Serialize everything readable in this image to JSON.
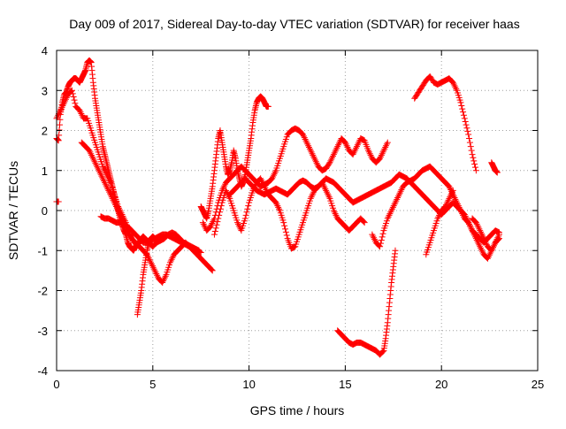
{
  "chart_data": {
    "type": "scatter",
    "title": "Day 009 of 2017, Sidereal Day-to-day VTEC variation (SDTVAR) for receiver haas",
    "xlabel": "GPS time / hours",
    "ylabel": "SDTVAR / TECUs",
    "xlim": [
      0,
      25
    ],
    "ylim": [
      -4,
      4
    ],
    "xticks": [
      "0",
      "5",
      "10",
      "15",
      "20",
      "25"
    ],
    "yticks": [
      "-4",
      "-3",
      "-2",
      "-1",
      "0",
      "1",
      "2",
      "3",
      "4"
    ],
    "grid": true,
    "legend": "none",
    "marker": "+",
    "colors": {
      "series": "#ff0000",
      "grid": "#a0a0a0",
      "axis": "#000000"
    },
    "series": [
      {
        "x": [
          0.0,
          0.1
        ],
        "y": [
          0.22,
          0.22
        ]
      },
      {
        "x": [
          0.0,
          0.1,
          0.2,
          0.3,
          0.4,
          0.5,
          0.6,
          0.7,
          0.8,
          0.9,
          1.0,
          1.1,
          1.2,
          1.3,
          1.4,
          1.5,
          1.6,
          1.7,
          1.8,
          1.9,
          2.0,
          2.1,
          2.2,
          2.3,
          2.4,
          2.5,
          2.6,
          2.7,
          2.8,
          2.9,
          3.0,
          3.1,
          3.2,
          3.3,
          3.4,
          3.5,
          3.6,
          3.7,
          3.8,
          3.9,
          4.0,
          4.1,
          4.2,
          4.3,
          4.4,
          4.5,
          4.6,
          4.7,
          4.8,
          4.9,
          5.0,
          5.2,
          5.4,
          5.6,
          5.8,
          6.0,
          6.2,
          6.4,
          6.6,
          6.8,
          7.0,
          7.2,
          7.4
        ],
        "y": [
          1.8,
          1.75,
          2.4,
          2.7,
          2.9,
          2.95,
          3.1,
          3.2,
          3.25,
          3.3,
          3.3,
          3.25,
          3.2,
          3.3,
          3.4,
          3.5,
          3.7,
          3.75,
          3.7,
          3.2,
          2.8,
          2.5,
          2.2,
          1.9,
          1.6,
          1.4,
          1.2,
          1.0,
          0.8,
          0.6,
          0.4,
          0.2,
          0.0,
          -0.2,
          -0.35,
          -0.5,
          -0.6,
          -0.8,
          -0.9,
          -0.95,
          -1.0,
          -0.9,
          -0.85,
          -0.8,
          -0.7,
          -0.65,
          -0.7,
          -0.75,
          -0.8,
          -0.85,
          -0.9,
          -0.8,
          -0.75,
          -0.7,
          -0.6,
          -0.55,
          -0.6,
          -0.7,
          -0.8,
          -0.85,
          -0.9,
          -0.95,
          -1.0
        ]
      },
      {
        "x": [
          0.0,
          0.2,
          0.4,
          0.6,
          0.8,
          1.0,
          1.2,
          1.4,
          1.6,
          1.8,
          2.0,
          2.2,
          2.4,
          2.6,
          2.8,
          3.0,
          3.2,
          3.4,
          3.6,
          3.8,
          4.0
        ],
        "y": [
          2.3,
          2.5,
          2.7,
          2.9,
          3.0,
          2.6,
          2.5,
          2.3,
          2.3,
          2.0,
          1.7,
          1.4,
          1.1,
          0.9,
          0.7,
          0.4,
          0.1,
          -0.1,
          -0.3,
          -0.6,
          -0.8
        ]
      },
      {
        "x": [
          1.3,
          1.5,
          1.7,
          1.9,
          2.1,
          2.3,
          2.5,
          2.7,
          2.9,
          3.1,
          3.3,
          3.5,
          3.7,
          3.9,
          4.1,
          4.3,
          4.5,
          4.7,
          4.9,
          5.1,
          5.3,
          5.5,
          5.7,
          5.9,
          6.1,
          6.3,
          6.5,
          6.7,
          6.9,
          7.1,
          7.3,
          7.5,
          7.7,
          7.9,
          8.1
        ],
        "y": [
          1.7,
          1.6,
          1.5,
          1.3,
          1.1,
          0.9,
          0.7,
          0.5,
          0.3,
          0.1,
          -0.1,
          -0.3,
          -0.5,
          -0.7,
          -0.8,
          -0.9,
          -1.0,
          -1.1,
          -1.3,
          -1.5,
          -1.7,
          -1.8,
          -1.6,
          -1.3,
          -1.1,
          -1.0,
          -0.9,
          -0.8,
          -0.9,
          -1.0,
          -1.1,
          -1.2,
          -1.3,
          -1.4,
          -1.5
        ]
      },
      {
        "x": [
          2.3,
          2.5,
          2.7,
          2.9,
          3.1,
          3.3,
          3.5,
          3.7,
          3.9,
          4.1,
          4.3,
          4.5,
          4.7,
          4.9,
          5.1,
          5.3,
          5.5,
          5.7,
          5.9,
          6.1,
          6.3,
          6.5,
          6.7,
          6.9,
          7.1,
          7.3,
          7.5
        ],
        "y": [
          -0.15,
          -0.2,
          -0.2,
          -0.25,
          -0.3,
          -0.3,
          -0.35,
          -0.4,
          -0.5,
          -0.6,
          -0.7,
          -0.8,
          -0.8,
          -0.75,
          -0.7,
          -0.65,
          -0.6,
          -0.6,
          -0.65,
          -0.7,
          -0.75,
          -0.8,
          -0.85,
          -0.9,
          -0.95,
          -1.0,
          -1.05
        ]
      },
      {
        "x": [
          4.2,
          4.3,
          4.4,
          4.5,
          4.6,
          4.7,
          4.8,
          4.9,
          5.0,
          5.1,
          5.2
        ],
        "y": [
          -2.6,
          -2.3,
          -2.0,
          -1.6,
          -1.3,
          -1.0,
          -0.8,
          -0.7,
          -0.65,
          -0.7,
          -0.75
        ]
      },
      {
        "x": [
          7.5,
          7.6,
          7.7,
          7.8,
          7.9,
          8.0,
          8.1,
          8.2,
          8.3,
          8.4,
          8.5,
          8.6,
          8.7,
          8.8,
          8.9,
          9.0,
          9.1,
          9.2,
          9.3,
          9.4,
          9.5,
          9.6,
          9.7,
          9.8,
          9.9,
          10.0,
          10.1,
          10.2,
          10.3,
          10.4,
          10.5,
          10.6,
          10.7,
          10.8,
          10.9,
          11.0
        ],
        "y": [
          0.1,
          0.0,
          -0.1,
          -0.2,
          0.0,
          0.3,
          0.6,
          1.0,
          1.4,
          1.8,
          2.0,
          1.7,
          1.4,
          1.1,
          0.9,
          1.0,
          1.2,
          1.5,
          1.3,
          1.0,
          0.8,
          0.6,
          0.7,
          0.9,
          1.2,
          1.5,
          1.8,
          2.2,
          2.5,
          2.7,
          2.8,
          2.85,
          2.8,
          2.7,
          2.6,
          2.6
        ]
      },
      {
        "x": [
          7.6,
          7.8,
          8.0,
          8.2,
          8.4,
          8.6,
          8.8,
          9.0,
          9.2,
          9.4,
          9.6,
          9.8,
          10.0,
          10.2,
          10.4,
          10.6,
          10.8,
          11.0,
          11.2,
          11.4,
          11.6,
          11.8,
          12.0,
          12.2,
          12.4,
          12.6,
          12.8,
          13.0,
          13.2,
          13.4,
          13.6,
          13.8,
          14.0,
          14.2,
          14.4,
          14.6,
          14.8,
          15.0,
          15.2,
          15.4,
          15.6,
          15.8,
          16.0,
          16.2,
          16.4,
          16.6,
          16.8,
          17.0,
          17.2
        ],
        "y": [
          -0.3,
          -0.5,
          -0.4,
          -0.2,
          0.2,
          0.5,
          0.7,
          0.8,
          0.9,
          1.0,
          1.1,
          1.0,
          0.9,
          0.8,
          0.7,
          0.6,
          0.65,
          0.7,
          0.8,
          1.0,
          1.3,
          1.6,
          1.9,
          2.0,
          2.05,
          2.0,
          1.9,
          1.7,
          1.5,
          1.3,
          1.1,
          1.0,
          1.05,
          1.2,
          1.4,
          1.6,
          1.8,
          1.7,
          1.5,
          1.4,
          1.6,
          1.8,
          1.75,
          1.5,
          1.3,
          1.2,
          1.3,
          1.5,
          1.7
        ]
      },
      {
        "x": [
          8.2,
          8.4,
          8.6,
          8.8,
          9.0,
          9.2,
          9.4,
          9.6,
          9.8,
          10.0,
          10.2,
          10.4,
          10.6,
          10.8,
          11.0,
          11.2,
          11.4,
          11.6,
          11.8,
          12.0,
          12.2,
          12.4,
          12.6,
          12.8,
          13.0,
          13.2,
          13.4,
          13.6,
          13.8,
          14.0,
          14.2,
          14.4,
          14.6,
          14.8,
          15.0,
          15.2,
          15.4,
          15.6,
          15.8,
          16.0
        ],
        "y": [
          -0.6,
          -0.2,
          0.2,
          0.5,
          0.3,
          0.0,
          -0.3,
          -0.5,
          -0.2,
          0.2,
          0.5,
          0.7,
          0.8,
          0.6,
          0.4,
          0.3,
          0.2,
          0.0,
          -0.3,
          -0.7,
          -0.95,
          -0.9,
          -0.6,
          -0.3,
          0.0,
          0.3,
          0.5,
          0.6,
          0.7,
          0.5,
          0.3,
          0.0,
          -0.2,
          -0.3,
          -0.4,
          -0.5,
          -0.4,
          -0.3,
          -0.2,
          -0.3
        ]
      },
      {
        "x": [
          9.0,
          9.2,
          9.4,
          9.6,
          9.8,
          10.0,
          10.2,
          10.4,
          10.6,
          10.8,
          11.0,
          11.2,
          11.4,
          11.6,
          11.8,
          12.0,
          12.2,
          12.4,
          12.6,
          12.8,
          13.0,
          13.2,
          13.4,
          13.6,
          13.8,
          14.0,
          14.2,
          14.4,
          14.6,
          14.8,
          15.0,
          15.2,
          15.4,
          15.6,
          15.8,
          16.0,
          16.2,
          16.4,
          16.6,
          16.8,
          17.0,
          17.2,
          17.4,
          17.6,
          17.8,
          18.0,
          18.2,
          18.4,
          18.6,
          18.8,
          19.0,
          19.2,
          19.4,
          19.6,
          19.8,
          20.0,
          20.2,
          20.4,
          20.6,
          20.8,
          21.0,
          21.2,
          21.4,
          21.6,
          21.8,
          22.0,
          22.2,
          22.4,
          22.6,
          22.8,
          23.0
        ],
        "y": [
          0.4,
          0.5,
          0.6,
          0.7,
          0.8,
          0.7,
          0.6,
          0.5,
          0.45,
          0.4,
          0.45,
          0.5,
          0.55,
          0.5,
          0.45,
          0.4,
          0.5,
          0.6,
          0.7,
          0.75,
          0.7,
          0.6,
          0.55,
          0.6,
          0.7,
          0.8,
          0.75,
          0.7,
          0.6,
          0.5,
          0.4,
          0.3,
          0.2,
          0.25,
          0.3,
          0.35,
          0.4,
          0.45,
          0.5,
          0.55,
          0.6,
          0.65,
          0.7,
          0.8,
          0.9,
          0.85,
          0.8,
          0.7,
          0.6,
          0.5,
          0.4,
          0.3,
          0.2,
          0.1,
          0.0,
          -0.1,
          0.0,
          0.1,
          0.2,
          0.1,
          0.0,
          -0.1,
          -0.3,
          -0.5,
          -0.7,
          -0.9,
          -1.1,
          -1.2,
          -1.0,
          -0.8,
          -0.6
        ]
      },
      {
        "x": [
          14.6,
          14.8,
          15.0,
          15.2,
          15.4,
          15.6,
          15.8,
          16.0,
          16.2,
          16.4,
          16.6,
          16.8,
          17.0,
          17.1,
          17.2,
          17.3,
          17.4,
          17.5,
          17.6
        ],
        "y": [
          -3.0,
          -3.1,
          -3.2,
          -3.3,
          -3.35,
          -3.3,
          -3.3,
          -3.35,
          -3.4,
          -3.45,
          -3.5,
          -3.6,
          -3.5,
          -3.2,
          -2.8,
          -2.3,
          -1.8,
          -1.4,
          -1.0
        ]
      },
      {
        "x": [
          16.4,
          16.6,
          16.8,
          17.0,
          17.2,
          17.4,
          17.6,
          17.8,
          18.0,
          18.2,
          18.4,
          18.6,
          18.8,
          19.0,
          19.2,
          19.4,
          19.6,
          19.8,
          20.0,
          20.2,
          20.4,
          20.6,
          20.8,
          21.0,
          21.2,
          21.4,
          21.6,
          21.8,
          22.0,
          22.2,
          22.4,
          22.6,
          22.8,
          23.0
        ],
        "y": [
          -0.6,
          -0.8,
          -0.9,
          -0.5,
          -0.2,
          0.0,
          0.2,
          0.4,
          0.6,
          0.7,
          0.75,
          0.8,
          0.9,
          1.0,
          1.05,
          1.1,
          1.0,
          0.9,
          0.8,
          0.7,
          0.6,
          0.4,
          0.2,
          0.0,
          -0.2,
          -0.3,
          -0.5,
          -0.6,
          -0.7,
          -0.8,
          -0.7,
          -0.6,
          -0.5,
          -0.55
        ]
      },
      {
        "x": [
          19.2,
          19.4,
          19.6,
          19.8,
          20.0,
          20.2,
          20.4,
          20.6
        ],
        "y": [
          -1.1,
          -0.8,
          -0.5,
          -0.2,
          0.0,
          0.1,
          0.3,
          0.5
        ]
      },
      {
        "x": [
          18.6,
          18.8,
          19.0,
          19.2,
          19.4,
          19.6,
          19.8,
          20.0,
          20.2,
          20.4,
          20.6,
          20.8,
          21.0,
          21.2,
          21.4,
          21.6,
          21.8
        ],
        "y": [
          2.8,
          2.95,
          3.1,
          3.25,
          3.35,
          3.2,
          3.15,
          3.2,
          3.25,
          3.3,
          3.2,
          3.0,
          2.7,
          2.3,
          1.9,
          1.4,
          1.0
        ]
      },
      {
        "x": [
          22.6,
          22.7,
          22.8,
          22.9
        ],
        "y": [
          1.2,
          1.1,
          1.0,
          0.95
        ]
      },
      {
        "x": [
          21.6,
          21.8,
          22.0,
          22.2,
          22.4,
          22.6,
          22.8,
          23.0
        ],
        "y": [
          -0.2,
          -0.3,
          -0.5,
          -0.7,
          -0.9,
          -1.0,
          -0.8,
          -0.7
        ]
      }
    ]
  }
}
